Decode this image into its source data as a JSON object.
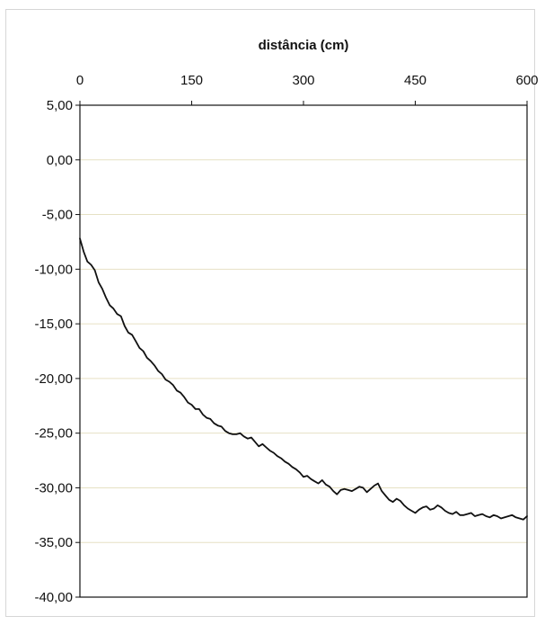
{
  "chart_data": {
    "type": "line",
    "title": "",
    "xlabel": "distância (cm)",
    "ylabel": "",
    "x_axis_position": "top",
    "xlim": [
      0,
      600
    ],
    "ylim": [
      -40,
      5
    ],
    "grid": "horizontal",
    "legend": "none",
    "x_ticks": [
      0,
      150,
      300,
      450,
      600
    ],
    "x_tick_labels": [
      "0",
      "150",
      "300",
      "450",
      "600"
    ],
    "y_ticks": [
      5,
      0,
      -5,
      -10,
      -15,
      -20,
      -25,
      -30,
      -35,
      -40
    ],
    "y_tick_labels": [
      "5,00",
      "0,00",
      "-5,00",
      "-10,00",
      "-15,00",
      "-20,00",
      "-25,00",
      "-30,00",
      "-35,00",
      "-40,00"
    ],
    "colors": {
      "line": "#111111",
      "grid": "#e6e1c4",
      "axis": "#111111"
    },
    "series": [
      {
        "x": [
          0,
          5,
          10,
          15,
          20,
          25,
          30,
          35,
          40,
          45,
          50,
          55,
          60,
          65,
          70,
          75,
          80,
          85,
          90,
          95,
          100,
          105,
          110,
          115,
          120,
          125,
          130,
          135,
          140,
          145,
          150,
          155,
          160,
          165,
          170,
          175,
          180,
          185,
          190,
          195,
          200,
          205,
          210,
          215,
          220,
          225,
          230,
          235,
          240,
          245,
          250,
          255,
          260,
          265,
          270,
          275,
          280,
          285,
          290,
          295,
          300,
          305,
          310,
          315,
          320,
          325,
          330,
          335,
          340,
          345,
          350,
          355,
          360,
          365,
          370,
          375,
          380,
          385,
          390,
          395,
          400,
          405,
          410,
          415,
          420,
          425,
          430,
          435,
          440,
          445,
          450,
          455,
          460,
          465,
          470,
          475,
          480,
          485,
          490,
          495,
          500,
          505,
          510,
          515,
          520,
          525,
          530,
          535,
          540,
          545,
          550,
          555,
          560,
          565,
          570,
          575,
          580,
          585,
          590,
          595,
          600
        ],
        "y": [
          -7.2,
          -8.4,
          -9.3,
          -9.6,
          -10.1,
          -11.2,
          -11.8,
          -12.6,
          -13.3,
          -13.6,
          -14.1,
          -14.3,
          -15.2,
          -15.8,
          -16.0,
          -16.6,
          -17.2,
          -17.5,
          -18.1,
          -18.4,
          -18.8,
          -19.3,
          -19.6,
          -20.1,
          -20.3,
          -20.6,
          -21.1,
          -21.3,
          -21.7,
          -22.2,
          -22.4,
          -22.8,
          -22.8,
          -23.3,
          -23.6,
          -23.7,
          -24.1,
          -24.3,
          -24.4,
          -24.8,
          -25.0,
          -25.1,
          -25.1,
          -25.0,
          -25.3,
          -25.5,
          -25.4,
          -25.8,
          -26.2,
          -26.0,
          -26.3,
          -26.6,
          -26.8,
          -27.1,
          -27.3,
          -27.6,
          -27.8,
          -28.1,
          -28.3,
          -28.6,
          -29.0,
          -28.9,
          -29.2,
          -29.4,
          -29.6,
          -29.3,
          -29.7,
          -29.9,
          -30.3,
          -30.6,
          -30.2,
          -30.1,
          -30.2,
          -30.3,
          -30.1,
          -29.9,
          -30.0,
          -30.4,
          -30.1,
          -29.8,
          -29.6,
          -30.3,
          -30.7,
          -31.1,
          -31.3,
          -31.0,
          -31.2,
          -31.6,
          -31.9,
          -32.1,
          -32.3,
          -32.0,
          -31.8,
          -31.7,
          -32.0,
          -31.9,
          -31.6,
          -31.8,
          -32.1,
          -32.3,
          -32.4,
          -32.2,
          -32.5,
          -32.5,
          -32.4,
          -32.3,
          -32.6,
          -32.5,
          -32.4,
          -32.6,
          -32.7,
          -32.5,
          -32.6,
          -32.8,
          -32.7,
          -32.6,
          -32.5,
          -32.7,
          -32.8,
          -32.9,
          -32.6
        ]
      }
    ]
  }
}
